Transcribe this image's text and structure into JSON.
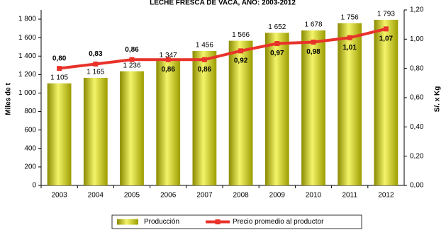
{
  "chart_data": {
    "type": "bar_line",
    "title": "LECHE FRESCA DE VACA, AÑO: 2003-2012",
    "y_label": "Miles de t",
    "y2_label": "S/. x Kg",
    "categories": [
      "2003",
      "2004",
      "2005",
      "2006",
      "2007",
      "2008",
      "2009",
      "2010",
      "2011",
      "2012"
    ],
    "series": [
      {
        "name": "Producción",
        "color": "#c8c800",
        "type": "bar",
        "values": [
          1105,
          1165,
          1236,
          1347,
          1456,
          1566,
          1652,
          1678,
          1756,
          1793
        ],
        "value_labels": [
          "1 105",
          "1 165",
          "1 236",
          "1 347",
          "1 456",
          "1 566",
          "1 652",
          "1 678",
          "1 756",
          "1 793"
        ]
      },
      {
        "name": "Precio promedio al productor",
        "color": "#e8322a",
        "type": "line",
        "axis": "y2",
        "values": [
          0.8,
          0.83,
          0.86,
          0.86,
          0.86,
          0.92,
          0.97,
          0.98,
          1.01,
          1.07
        ],
        "value_labels": [
          "0,80",
          "0,83",
          "0,86",
          "0,86",
          "0,86",
          "0,92",
          "0,97",
          "0,98",
          "1,01",
          "1,07"
        ]
      }
    ],
    "ylim": [
      0,
      1900
    ],
    "yticks": [
      0,
      200,
      400,
      600,
      800,
      {
        "value": 1000,
        "label": "1 000"
      },
      {
        "value": 1200,
        "label": "1 200"
      },
      {
        "value": 1400,
        "label": "1 400"
      },
      {
        "value": 1600,
        "label": "1 600"
      },
      {
        "value": 1800,
        "label": "1 800"
      }
    ],
    "y2lim": [
      0,
      1.2
    ],
    "y2ticks": [
      {
        "value": 0,
        "label": "0,00"
      },
      {
        "value": 0.2,
        "label": "0,20"
      },
      {
        "value": 0.4,
        "label": "0,40"
      },
      {
        "value": 0.6,
        "label": "0,60"
      },
      {
        "value": 0.8,
        "label": "0,80"
      },
      {
        "value": 1.0,
        "label": "1,00"
      },
      {
        "value": 1.2,
        "label": "1,20"
      }
    ],
    "legend": "bottom"
  }
}
